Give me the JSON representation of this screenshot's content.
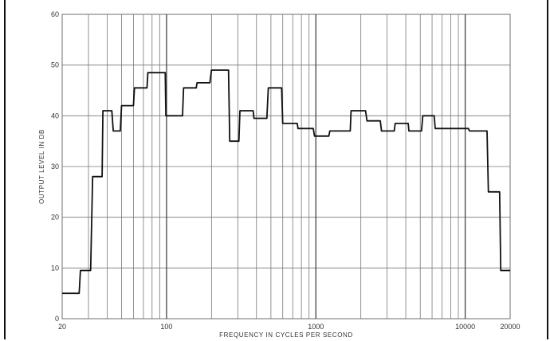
{
  "chart_data": {
    "type": "line",
    "title": "",
    "xlabel": "FREQUENCY IN CYCLES PER SECOND",
    "ylabel": "OUTPUT LEVEL IN DB",
    "x_scale": "log",
    "xlim": [
      20,
      20000
    ],
    "ylim": [
      0,
      60
    ],
    "grid": true,
    "x_tick_labels": [
      {
        "value": 20,
        "label": "20"
      },
      {
        "value": 100,
        "label": "100"
      },
      {
        "value": 1000,
        "label": "1000"
      },
      {
        "value": 10000,
        "label": "10000"
      },
      {
        "value": 20000,
        "label": "20000"
      }
    ],
    "y_ticks": [
      0,
      10,
      20,
      30,
      40,
      50,
      60
    ],
    "x_gridlines": [
      20,
      30,
      40,
      50,
      60,
      70,
      80,
      90,
      100,
      200,
      300,
      400,
      500,
      600,
      700,
      800,
      900,
      1000,
      2000,
      3000,
      4000,
      5000,
      6000,
      7000,
      8000,
      9000,
      10000,
      20000
    ],
    "series": [
      {
        "color": "#111111",
        "x": [
          20,
          26,
          26.5,
          31,
          32,
          37,
          37.5,
          43,
          44,
          49,
          50,
          60,
          61,
          74,
          75,
          98,
          99,
          128,
          130,
          158,
          160,
          195,
          200,
          260,
          265,
          305,
          310,
          380,
          385,
          470,
          480,
          590,
          600,
          750,
          760,
          960,
          980,
          1220,
          1240,
          1700,
          1720,
          2150,
          2200,
          2700,
          2750,
          3350,
          3400,
          4150,
          4200,
          5100,
          5200,
          6200,
          6300,
          10500,
          10700,
          14000,
          14300,
          17000,
          17300,
          20000
        ],
        "y": [
          5,
          5,
          9.5,
          9.5,
          28,
          28,
          41,
          41,
          37,
          37,
          42,
          42,
          45.5,
          45.5,
          48.5,
          48.5,
          40,
          40,
          45.5,
          45.5,
          46.5,
          46.5,
          49,
          49,
          35,
          35,
          41,
          41,
          39.5,
          39.5,
          45.5,
          45.5,
          38.5,
          38.5,
          37.5,
          37.5,
          36,
          36,
          37,
          37,
          41,
          41,
          39,
          39,
          37,
          37,
          38.5,
          38.5,
          37,
          37,
          40,
          40,
          37.5,
          37.5,
          37,
          37,
          25,
          25,
          9.5,
          9.5
        ]
      }
    ]
  }
}
